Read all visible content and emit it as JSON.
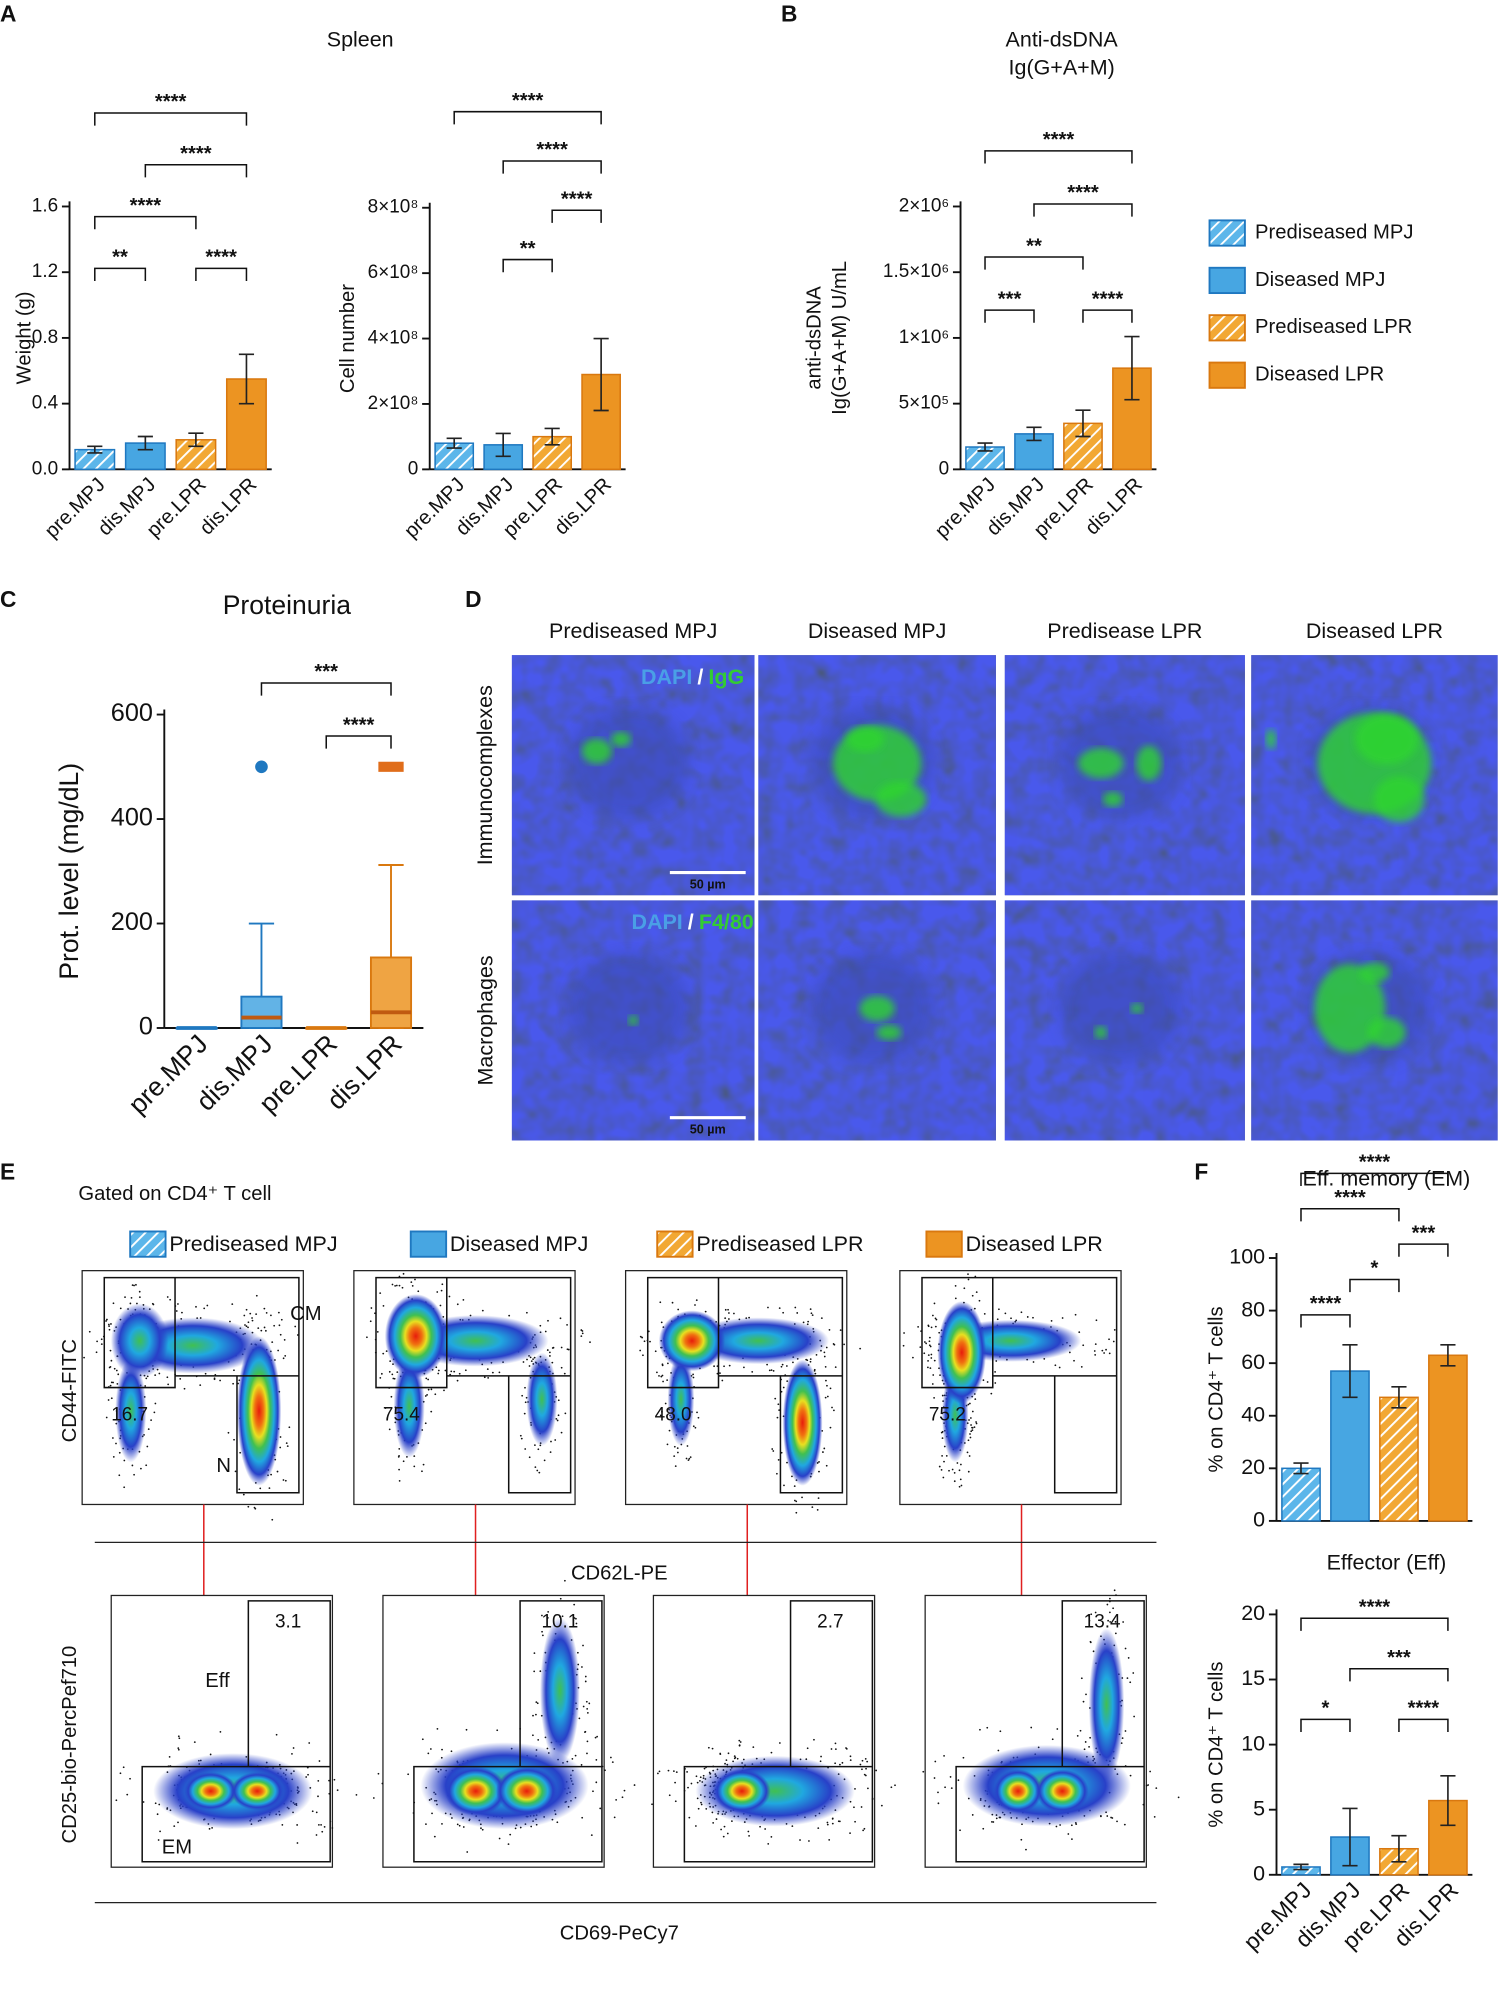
{
  "panel_letters": [
    "A",
    "B",
    "C",
    "D",
    "E",
    "F"
  ],
  "groups": [
    {
      "name": "Prediseased MPJ",
      "color": "#5cb6ea",
      "edge": "#1f78c0",
      "hatched": true
    },
    {
      "name": "Diseased MPJ",
      "color": "#47a6e2",
      "edge": "#1f78c0",
      "hatched": false
    },
    {
      "name": "Prediseased LPR",
      "color": "#f2a834",
      "edge": "#d9780f",
      "hatched": true
    },
    {
      "name": "Diseased LPR",
      "color": "#ec9422",
      "edge": "#d9780f",
      "hatched": false
    }
  ],
  "chart_data": [
    {
      "type": "bar",
      "title": "Spleen",
      "ylabel": [
        "Weight (g)"
      ],
      "categories": [
        "pre.MPJ",
        "dis.MPJ",
        "pre.LPR",
        "dis.LPR"
      ],
      "values": [
        0.12,
        0.16,
        0.18,
        0.55
      ],
      "errors": [
        0.02,
        0.04,
        0.04,
        0.15
      ],
      "ylim": [
        0,
        1.6
      ],
      "yticks": [
        {
          "value": 0,
          "label": "0.0"
        },
        0.4,
        0.8,
        1.2,
        1.6
      ],
      "significance": [
        {
          "from": 0,
          "to": 1,
          "label": "**"
        },
        {
          "from": 2,
          "to": 3,
          "label": "****"
        },
        {
          "from": 0,
          "to": 2,
          "label": "****"
        },
        {
          "from": 1,
          "to": 3,
          "label": "****"
        },
        {
          "from": 0,
          "to": 3,
          "label": "****"
        }
      ]
    },
    {
      "type": "bar",
      "ylabel": [
        "Cell number"
      ],
      "categories": [
        "pre.MPJ",
        "dis.MPJ",
        "pre.LPR",
        "dis.LPR"
      ],
      "values": [
        80000000,
        75000000,
        100000000,
        290000000
      ],
      "errors": [
        15000000,
        35000000,
        25000000,
        110000000
      ],
      "ylim": [
        0,
        800000000
      ],
      "yticks": [
        0,
        {
          "value": 200000000,
          "label": "2×10⁸"
        },
        {
          "value": 400000000,
          "label": "4×10⁸"
        },
        {
          "value": 600000000,
          "label": "6×10⁸"
        },
        {
          "value": 800000000,
          "label": "8×10⁸"
        }
      ],
      "significance": [
        {
          "from": 1,
          "to": 2,
          "label": "**"
        },
        {
          "from": 2,
          "to": 3,
          "label": "****"
        },
        {
          "from": 1,
          "to": 3,
          "label": "****"
        },
        {
          "from": 0,
          "to": 3,
          "label": "****"
        }
      ]
    },
    {
      "type": "bar",
      "title": "Anti-dsDNA",
      "subtitle": "Ig(G+A+M)",
      "ylabel": [
        "anti-dsDNA",
        "Ig(G+A+M) U/mL"
      ],
      "categories": [
        "pre.MPJ",
        "dis.MPJ",
        "pre.LPR",
        "dis.LPR"
      ],
      "values": [
        170000,
        270000,
        350000,
        770000
      ],
      "errors": [
        30000,
        50000,
        100000,
        240000
      ],
      "ylim": [
        0,
        2000000
      ],
      "yticks": [
        0,
        {
          "value": 500000,
          "label": "5×10⁵"
        },
        {
          "value": 1000000,
          "label": "1×10⁶"
        },
        {
          "value": 1500000,
          "label": "1.5×10⁶"
        },
        {
          "value": 2000000,
          "label": "2×10⁶"
        }
      ],
      "significance": [
        {
          "from": 0,
          "to": 1,
          "label": "***"
        },
        {
          "from": 2,
          "to": 3,
          "label": "****"
        },
        {
          "from": 0,
          "to": 2,
          "label": "**"
        },
        {
          "from": 1,
          "to": 3,
          "label": "****"
        },
        {
          "from": 0,
          "to": 3,
          "label": "****"
        }
      ]
    },
    {
      "type": "box",
      "title": "Proteinuria",
      "ylabel": [
        "Prot. level (mg/dL)"
      ],
      "categories": [
        "pre.MPJ",
        "dis.MPJ",
        "pre.LPR",
        "dis.LPR"
      ],
      "whisker_low": [
        0,
        0,
        0,
        0
      ],
      "q1": [
        0,
        0,
        0,
        0
      ],
      "median": [
        0,
        20,
        0,
        30
      ],
      "q3": [
        0,
        60,
        0,
        135
      ],
      "whisker_high": [
        0,
        200,
        0,
        312
      ],
      "outliers": [
        [],
        [
          500
        ],
        [],
        [
          500
        ]
      ],
      "ylim": [
        0,
        600
      ],
      "yticks": [
        0,
        200,
        400,
        600
      ],
      "significance": [
        {
          "from": 2,
          "to": 3,
          "label": "****"
        },
        {
          "from": 1,
          "to": 3,
          "label": "***"
        }
      ]
    },
    {
      "type": "bar",
      "title": "Eff. memory (EM)",
      "ylabel": [
        "% on CD4⁺ T cells"
      ],
      "values": [
        20,
        57,
        47,
        63
      ],
      "errors": [
        2,
        10,
        4,
        4
      ],
      "ylim": [
        0,
        100
      ],
      "yticks": [
        0,
        20,
        40,
        60,
        80,
        100
      ],
      "significance": [
        {
          "from": 0,
          "to": 1,
          "label": "****"
        },
        {
          "from": 1,
          "to": 2,
          "label": "*"
        },
        {
          "from": 2,
          "to": 3,
          "label": "***"
        },
        {
          "from": 0,
          "to": 2,
          "label": "****"
        },
        {
          "from": 0,
          "to": 3,
          "label": "****"
        }
      ]
    },
    {
      "type": "bar",
      "title": "Effector (Eff)",
      "ylabel": [
        "% on CD4⁺ T cells"
      ],
      "categories": [
        "pre.MPJ",
        "dis.MPJ",
        "pre.LPR",
        "dis.LPR"
      ],
      "values": [
        0.6,
        2.9,
        2.0,
        5.7
      ],
      "errors": [
        0.2,
        2.2,
        1.0,
        1.9
      ],
      "ylim": [
        0,
        20
      ],
      "yticks": [
        0,
        5,
        10,
        15,
        20
      ],
      "significance": [
        {
          "from": 0,
          "to": 1,
          "label": "*"
        },
        {
          "from": 2,
          "to": 3,
          "label": "****"
        },
        {
          "from": 1,
          "to": 3,
          "label": "***"
        },
        {
          "from": 0,
          "to": 3,
          "label": "****"
        }
      ]
    }
  ],
  "panel_d": {
    "columns": [
      "Prediseased MPJ",
      "Diseased MPJ",
      "Predisease LPR",
      "Diseased LPR"
    ],
    "rows": [
      {
        "label": "Immunocomplexes",
        "stain": [
          "DAPI",
          "/",
          "IgG"
        ],
        "scale_bar": "50 µm"
      },
      {
        "label": "Macrophages",
        "stain": [
          "DAPI",
          "/",
          "F4/80"
        ],
        "scale_bar": "50 µm"
      }
    ]
  },
  "panel_e": {
    "gating": "Gated on CD4⁺ T cell",
    "top": {
      "ylabel": "CD44-FITC",
      "xlabel": "CD62L-PE",
      "values": [
        "16.7",
        "75.4",
        "48.0",
        "75.2"
      ],
      "gates": [
        "CM",
        "N"
      ]
    },
    "bottom": {
      "ylabel": "CD25-bio-PercPef710",
      "xlabel": "CD69-PeCy7",
      "values": [
        "3.1",
        "10.1",
        "2.7",
        "13.4"
      ],
      "gates": [
        "Eff",
        "EM"
      ]
    }
  }
}
